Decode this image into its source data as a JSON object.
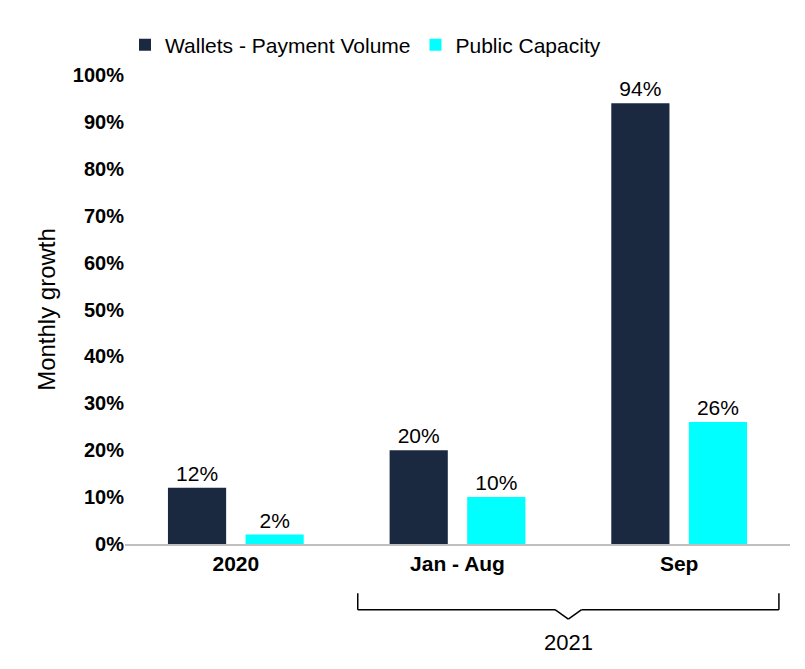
{
  "chart_data": {
    "type": "bar",
    "y_label": "Monthly growth",
    "categories": [
      "2020",
      "Jan - Aug",
      "Sep"
    ],
    "series": [
      {
        "name": "Wallets - Payment Volume",
        "color": "#1a2940",
        "values": [
          12,
          20,
          94
        ],
        "value_labels": [
          "12%",
          "20%",
          "94%"
        ]
      },
      {
        "name": "Public Capacity",
        "color": "#00ffff",
        "values": [
          2,
          10,
          26
        ],
        "value_labels": [
          "2%",
          "10%",
          "26%"
        ]
      }
    ],
    "ylim": [
      0,
      100
    ],
    "yticks": [
      {
        "value": 0,
        "label": "0%"
      },
      {
        "value": 10,
        "label": "10%"
      },
      {
        "value": 20,
        "label": "20%"
      },
      {
        "value": 30,
        "label": "30%"
      },
      {
        "value": 40,
        "label": "40%"
      },
      {
        "value": 50,
        "label": "50%"
      },
      {
        "value": 60,
        "label": "60%"
      },
      {
        "value": 70,
        "label": "70%"
      },
      {
        "value": 80,
        "label": "80%"
      },
      {
        "value": 90,
        "label": "90%"
      },
      {
        "value": 100,
        "label": "100%"
      }
    ],
    "grid": false,
    "legend": "top-left",
    "data_labels": true,
    "annotations": [
      {
        "text": "2021",
        "span": [
          "Jan - Aug",
          "Sep"
        ]
      }
    ]
  }
}
